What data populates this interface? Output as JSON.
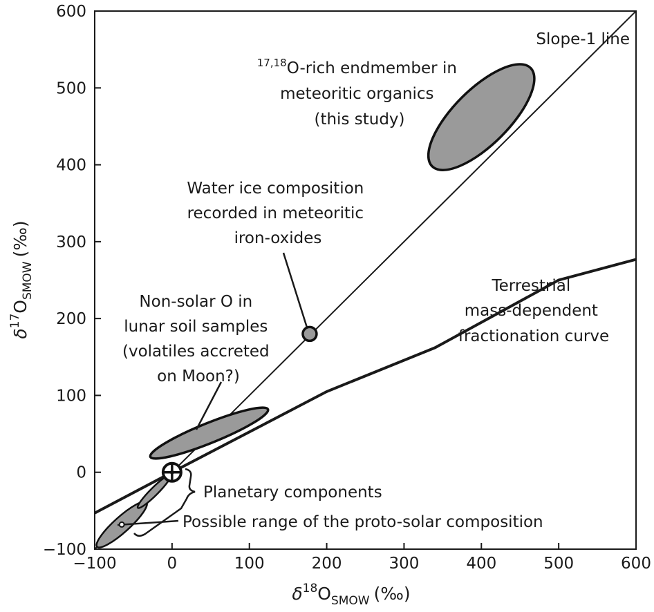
{
  "chart_data": {
    "type": "scatter",
    "xlabel": {
      "main": "δ18O",
      "sup": "18",
      "base": "O",
      "sub": "SMOW",
      "unit": "(‰)"
    },
    "ylabel": {
      "main": "δ17O",
      "sup": "17",
      "base": "O",
      "sub": "SMOW",
      "unit": "(‰)"
    },
    "xlim": [
      -100,
      600
    ],
    "ylim": [
      -100,
      600
    ],
    "x_ticks": [
      "−100",
      "0",
      "100",
      "200",
      "300",
      "400",
      "500",
      "600"
    ],
    "y_ticks": [
      "600",
      "500",
      "400",
      "300",
      "200",
      "100",
      "0",
      "−100"
    ],
    "x_tick_values": [
      -100,
      0,
      100,
      200,
      300,
      400,
      500,
      600
    ],
    "y_tick_values": [
      600,
      500,
      400,
      300,
      200,
      100,
      0,
      -100
    ],
    "grid": false,
    "lines": {
      "slope1": {
        "label": "Slope-1 line",
        "points": [
          [
            -100,
            -100
          ],
          [
            600,
            600
          ]
        ]
      },
      "terrestrial": {
        "label_lines": [
          "Terrestrial",
          "mass-dependent",
          "fractionation curve"
        ],
        "points": [
          [
            -100,
            -53
          ],
          [
            0,
            0
          ],
          [
            200,
            105
          ],
          [
            340,
            162
          ],
          [
            500,
            250
          ],
          [
            600,
            277
          ]
        ]
      }
    },
    "regions": {
      "organics": {
        "label_sup": "17,18",
        "label_lines": [
          "O-rich endmember in",
          "meteoritic organics",
          "(this study)"
        ],
        "center": [
          400,
          462
        ],
        "rx": 90,
        "ry": 36,
        "angle_deg": -45
      },
      "lunar": {
        "label_lines": [
          "Non-solar O in",
          "lunar soil samples",
          "(volatiles accreted",
          "on Moon?)"
        ],
        "center": [
          48,
          51
        ],
        "rx": 82,
        "ry": 13,
        "angle_deg": -22
      },
      "protosolar": {
        "label": "Possible range of the proto-solar composition",
        "center": [
          -65,
          -68
        ],
        "rx": 43,
        "ry": 10,
        "angle_deg": -42
      },
      "protosolar_inner": {
        "center": [
          -23,
          -25
        ],
        "rx": 30,
        "ry": 5,
        "angle_deg": -45
      }
    },
    "points": {
      "water_ice": {
        "label_lines": [
          "Water ice composition",
          "recorded in meteoritic",
          "iron-oxides"
        ],
        "x": 178,
        "y": 180
      },
      "smow": {
        "x": 0,
        "y": 0
      }
    },
    "brace_label": "Planetary components"
  }
}
